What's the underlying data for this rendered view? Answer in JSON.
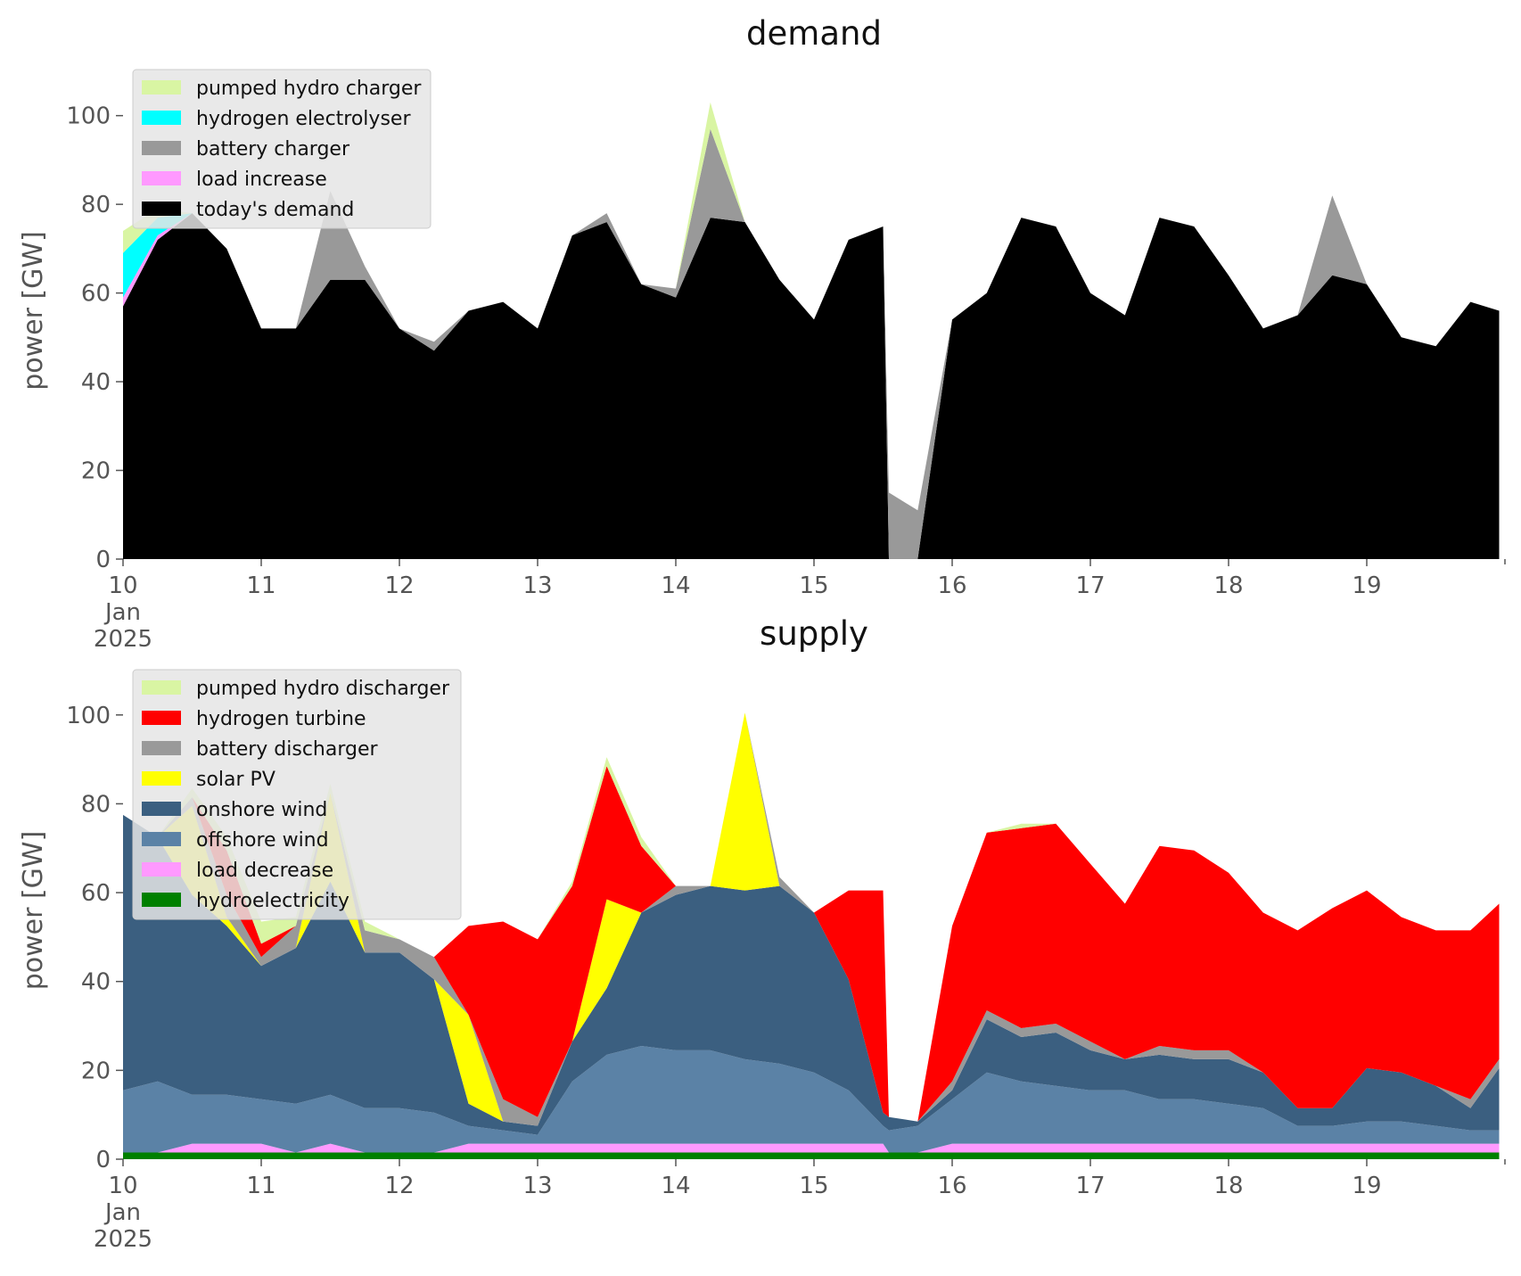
{
  "colors": {
    "pumped_hydro": "#d9f5a3",
    "hydrogen_electrolyser": "#00ffff",
    "hydrogen_turbine": "#ff0000",
    "battery": "#999999",
    "solar": "#ffff00",
    "onshore": "#3b5f80",
    "offshore": "#5b82a6",
    "load_shift": "#ff99ff",
    "hydro": "#008000",
    "demand": "#000000",
    "legend_bg": "#e5e5e5"
  },
  "xaxis": {
    "ticks": [
      "10",
      "11",
      "12",
      "13",
      "14",
      "15",
      "16",
      "17",
      "18",
      "19"
    ],
    "first_extra": [
      "Jan",
      "2025"
    ]
  },
  "chart_data": [
    {
      "id": "demand",
      "type": "area",
      "title": "demand",
      "xlabel": "",
      "ylabel": "power [GW]",
      "xlim": [
        0,
        240
      ],
      "x_units": "hours since 2025-01-10 00:00",
      "ylim": [
        0,
        112
      ],
      "yticks": [
        0,
        20,
        40,
        60,
        80,
        100
      ],
      "grid": false,
      "legend_position": "top-left",
      "x": [
        0,
        6,
        12,
        18,
        24,
        30,
        36,
        42,
        48,
        54,
        60,
        66,
        72,
        78,
        84,
        90,
        96,
        102,
        108,
        114,
        120,
        126,
        132,
        133,
        138,
        144,
        150,
        156,
        162,
        168,
        174,
        180,
        186,
        192,
        198,
        204,
        210,
        216,
        222,
        228,
        234,
        239
      ],
      "series": [
        {
          "name": "today's demand",
          "color_key": "demand",
          "values": [
            57,
            72,
            78,
            70,
            52,
            52,
            63,
            63,
            52,
            47,
            56,
            58,
            52,
            73,
            76,
            62,
            59,
            77,
            76,
            63,
            54,
            72,
            75,
            0,
            0,
            54,
            60,
            77,
            75,
            60,
            55,
            77,
            75,
            64,
            52,
            55,
            64,
            62,
            50,
            48,
            58,
            56
          ]
        },
        {
          "name": "load increase",
          "color_key": "load_shift",
          "values": [
            2,
            1,
            0,
            0,
            0,
            0,
            0,
            0,
            0,
            0,
            0,
            0,
            0,
            0,
            0,
            0,
            0,
            0,
            0,
            0,
            0,
            0,
            0,
            0,
            0,
            0,
            0,
            0,
            0,
            0,
            0,
            0,
            0,
            0,
            0,
            0,
            0,
            0,
            0,
            0,
            0,
            0
          ]
        },
        {
          "name": "battery charger",
          "color_key": "battery",
          "values": [
            0,
            0,
            0,
            0,
            0,
            0,
            20,
            3,
            0,
            2,
            0,
            0,
            0,
            0,
            2,
            0,
            2,
            20,
            0,
            0,
            0,
            0,
            0,
            15,
            11,
            0,
            0,
            0,
            0,
            0,
            0,
            0,
            0,
            0,
            0,
            0,
            18,
            0,
            0,
            0,
            0,
            0
          ]
        },
        {
          "name": "hydrogen electrolyser",
          "color_key": "hydrogen_electrolyser",
          "values": [
            10,
            4,
            0,
            0,
            0,
            0,
            0,
            0,
            0,
            0,
            0,
            0,
            0,
            0,
            0,
            0,
            0,
            0,
            0,
            0,
            0,
            0,
            0,
            0,
            0,
            0,
            0,
            0,
            0,
            0,
            0,
            0,
            0,
            0,
            0,
            0,
            0,
            0,
            0,
            0,
            0,
            0
          ]
        },
        {
          "name": "pumped hydro charger",
          "color_key": "pumped_hydro",
          "values": [
            5,
            2,
            0,
            0,
            0,
            0,
            0,
            0,
            0,
            0,
            0,
            0,
            0,
            0,
            0,
            0,
            0,
            6,
            0,
            0,
            0,
            0,
            0,
            0,
            0,
            0,
            0,
            0,
            0,
            0,
            0,
            0,
            0,
            0,
            0,
            0,
            0,
            0,
            0,
            0,
            0,
            0
          ]
        }
      ],
      "legend_order": [
        "pumped hydro charger",
        "hydrogen electrolyser",
        "battery charger",
        "load increase",
        "today's demand"
      ]
    },
    {
      "id": "supply",
      "type": "area",
      "title": "supply",
      "xlabel": "",
      "ylabel": "power [GW]",
      "xlim": [
        0,
        240
      ],
      "x_units": "hours since 2025-01-10 00:00",
      "ylim": [
        0,
        112
      ],
      "yticks": [
        0,
        20,
        40,
        60,
        80,
        100
      ],
      "grid": false,
      "legend_position": "top-left",
      "x": [
        0,
        6,
        12,
        18,
        24,
        30,
        36,
        42,
        48,
        54,
        60,
        66,
        72,
        78,
        84,
        90,
        96,
        102,
        108,
        114,
        120,
        126,
        132,
        133,
        138,
        144,
        150,
        156,
        162,
        168,
        174,
        180,
        186,
        192,
        198,
        204,
        210,
        216,
        222,
        228,
        234,
        239
      ],
      "series": [
        {
          "name": "hydroelectricity",
          "color_key": "hydro",
          "values": [
            1.5,
            1.5,
            1.5,
            1.5,
            1.5,
            1.5,
            1.5,
            1.5,
            1.5,
            1.5,
            1.5,
            1.5,
            1.5,
            1.5,
            1.5,
            1.5,
            1.5,
            1.5,
            1.5,
            1.5,
            1.5,
            1.5,
            1.5,
            1.5,
            1.5,
            1.5,
            1.5,
            1.5,
            1.5,
            1.5,
            1.5,
            1.5,
            1.5,
            1.5,
            1.5,
            1.5,
            1.5,
            1.5,
            1.5,
            1.5,
            1.5,
            1.5
          ]
        },
        {
          "name": "load decrease",
          "color_key": "load_shift",
          "values": [
            0,
            0,
            2,
            2,
            2,
            0,
            2,
            0,
            0,
            0,
            2,
            2,
            2,
            2,
            2,
            2,
            2,
            2,
            2,
            2,
            2,
            2,
            2,
            0,
            0,
            2,
            2,
            2,
            2,
            2,
            2,
            2,
            2,
            2,
            2,
            2,
            2,
            2,
            2,
            2,
            2,
            2
          ]
        },
        {
          "name": "offshore wind",
          "color_key": "offshore",
          "values": [
            14,
            16,
            11,
            11,
            10,
            11,
            11,
            10,
            10,
            9,
            4,
            3,
            2,
            14,
            20,
            22,
            21,
            21,
            19,
            18,
            16,
            12,
            4,
            5,
            6,
            10,
            16,
            14,
            13,
            12,
            12,
            10,
            10,
            9,
            8,
            4,
            4,
            5,
            5,
            4,
            3,
            3
          ]
        },
        {
          "name": "onshore wind",
          "color_key": "onshore",
          "values": [
            62,
            55,
            45,
            38,
            30,
            35,
            48,
            35,
            35,
            30,
            5,
            2,
            2,
            9,
            15,
            30,
            35,
            37,
            38,
            40,
            36,
            25,
            3,
            3,
            1,
            2,
            12,
            10,
            12,
            9,
            7,
            10,
            9,
            10,
            8,
            4,
            4,
            12,
            11,
            9,
            5,
            14
          ]
        },
        {
          "name": "solar PV",
          "color_key": "solar",
          "values": [
            0,
            0,
            20,
            2,
            0,
            0,
            20,
            0,
            0,
            0,
            20,
            0,
            0,
            0,
            20,
            0,
            0,
            0,
            40,
            0,
            0,
            0,
            0,
            0,
            0,
            0,
            0,
            0,
            0,
            0,
            0,
            0,
            0,
            0,
            0,
            0,
            0,
            0,
            0,
            0,
            0,
            0
          ]
        },
        {
          "name": "battery discharger",
          "color_key": "battery",
          "values": [
            0,
            0,
            2,
            5,
            2,
            5,
            0,
            5,
            3,
            5,
            0,
            5,
            2,
            0,
            0,
            0,
            2,
            0,
            0,
            2,
            0,
            0,
            0,
            0,
            0,
            2,
            2,
            2,
            2,
            2,
            0,
            2,
            2,
            2,
            0,
            0,
            0,
            0,
            0,
            0,
            2,
            2
          ]
        },
        {
          "name": "hydrogen turbine",
          "color_key": "hydrogen_turbine",
          "values": [
            0,
            0,
            0,
            10,
            3,
            0,
            0,
            0,
            0,
            0,
            20,
            40,
            40,
            35,
            30,
            15,
            0,
            0,
            0,
            0,
            0,
            20,
            50,
            0,
            0,
            35,
            40,
            45,
            45,
            40,
            35,
            45,
            45,
            40,
            36,
            40,
            45,
            40,
            35,
            35,
            38,
            35
          ]
        },
        {
          "name": "pumped hydro discharger",
          "color_key": "pumped_hydro",
          "values": [
            0,
            0,
            2,
            3,
            5,
            2,
            2,
            2,
            0,
            0,
            0,
            0,
            0,
            1,
            2,
            2,
            0,
            0,
            0,
            0,
            0,
            0,
            0,
            0,
            0,
            0,
            0,
            1,
            0,
            0,
            0,
            0,
            0,
            0,
            0,
            0,
            0,
            0,
            0,
            0,
            0,
            0
          ]
        }
      ],
      "legend_order": [
        "pumped hydro discharger",
        "hydrogen turbine",
        "battery discharger",
        "solar PV",
        "onshore wind",
        "offshore wind",
        "load decrease",
        "hydroelectricity"
      ]
    }
  ]
}
